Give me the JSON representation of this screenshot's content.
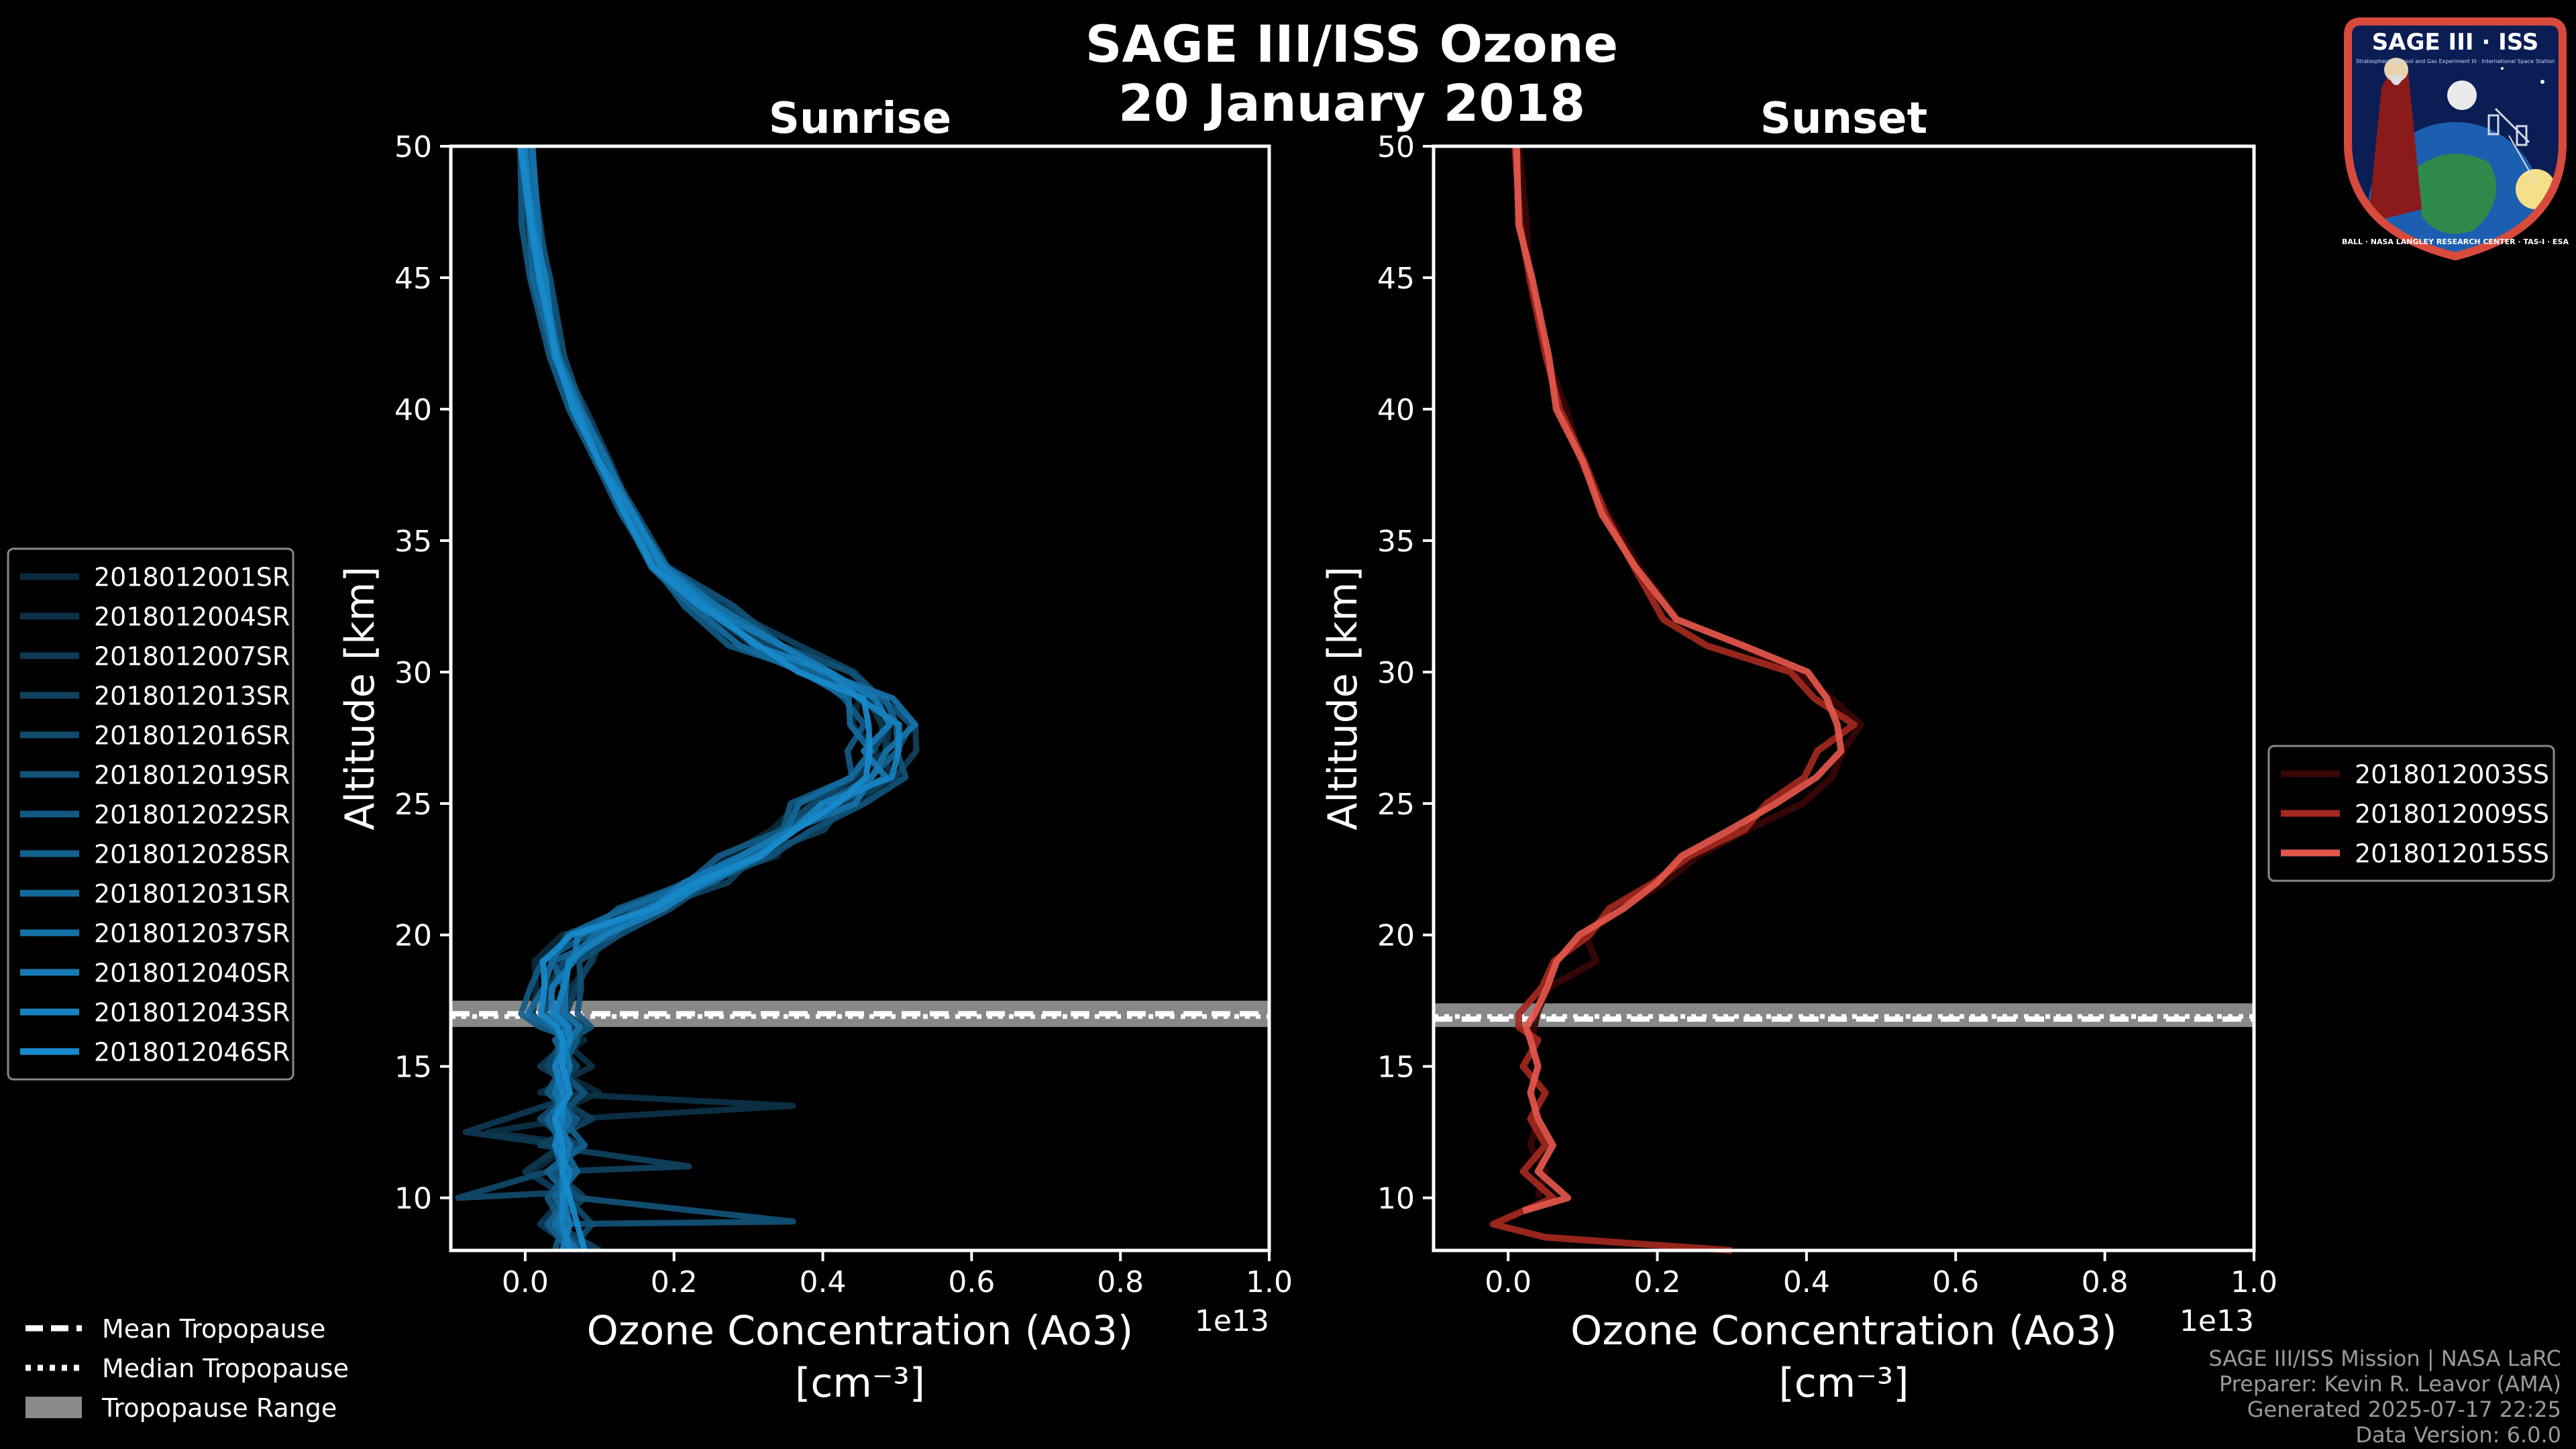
{
  "figure": {
    "title_line1": "SAGE III/ISS Ozone",
    "title_line2": "20 January 2018",
    "footer": [
      "SAGE III/ISS Mission | NASA LaRC",
      "Preparer: Kevin R. Leavor (AMA)",
      "Generated 2025-07-17 22:25",
      "Data Version: 6.0.0"
    ],
    "badge": {
      "title": "SAGE III · ISS",
      "subtitle": "Stratospheric Aerosol and Gas Experiment III · International Space Station",
      "ring_text": "BALL · NASA LANGLEY RESEARCH CENTER · TAS-I · ESA"
    }
  },
  "tropopause_legend": [
    {
      "label": "Mean Tropopause",
      "style": "dashed"
    },
    {
      "label": "Median Tropopause",
      "style": "dotted"
    },
    {
      "label": "Tropopause Range",
      "style": "band"
    }
  ],
  "colors": {
    "sunrise": [
      "#0b2a3d",
      "#0c3248",
      "#0e3a54",
      "#0f4260",
      "#104a6c",
      "#115278",
      "#125a84",
      "#136290",
      "#146a9c",
      "#1572a8",
      "#167ab4",
      "#1782c0",
      "#188acc"
    ],
    "sunrise_main": "#1f93d1",
    "sunset": [
      "#3a0606",
      "#a3281e",
      "#e2574c"
    ],
    "band": "#a0a0a0"
  },
  "chart_data": [
    {
      "id": "sunrise",
      "type": "line",
      "title": "Sunrise",
      "xlabel": "Ozone Concentration (Ao3)",
      "xlabel_units": "[cm⁻³]",
      "x_multiplier_label": "1e13",
      "ylabel": "Altitude [km]",
      "xlim": [
        -0.1,
        1.0
      ],
      "ylim": [
        8,
        50
      ],
      "xticks": [
        0.0,
        0.2,
        0.4,
        0.6,
        0.8,
        1.0
      ],
      "xtick_labels": [
        "0.0",
        "0.2",
        "0.4",
        "0.6",
        "0.8",
        "1.0"
      ],
      "yticks": [
        10,
        15,
        20,
        25,
        30,
        35,
        40,
        45,
        50
      ],
      "ytick_labels": [
        "10",
        "15",
        "20",
        "25",
        "30",
        "35",
        "40",
        "45",
        "50"
      ],
      "tropopause": {
        "mean": 17.0,
        "median": 16.9,
        "range": [
          16.5,
          17.5
        ]
      },
      "legend_position": "left",
      "series": [
        {
          "name": "2018012001SR",
          "offset": -0.02,
          "tail": [
            [
              0.08,
              16
            ],
            [
              0.03,
              15
            ],
            [
              0.1,
              14
            ],
            [
              0.02,
              13
            ],
            [
              0.06,
              12
            ],
            [
              0.01,
              11
            ],
            [
              0.05,
              10
            ],
            [
              0.02,
              9
            ],
            [
              0.08,
              8
            ]
          ]
        },
        {
          "name": "2018012004SR",
          "offset": 0.02,
          "tail": [
            [
              0.05,
              16
            ],
            [
              0.09,
              15
            ],
            [
              0.02,
              14
            ],
            [
              0.36,
              13.5
            ],
            [
              0.06,
              13
            ],
            [
              -0.05,
              12.5
            ],
            [
              0.08,
              12
            ],
            [
              0.03,
              11
            ],
            [
              0.07,
              10
            ],
            [
              0.03,
              9
            ],
            [
              0.09,
              8
            ]
          ]
        },
        {
          "name": "2018012007SR",
          "offset": -0.01,
          "tail": [
            [
              0.06,
              16
            ],
            [
              0.02,
              15
            ],
            [
              0.08,
              14
            ],
            [
              -0.08,
              12.5
            ],
            [
              0.05,
              12
            ],
            [
              0.0,
              11
            ],
            [
              0.06,
              10
            ],
            [
              0.02,
              9
            ],
            [
              0.07,
              8
            ]
          ]
        },
        {
          "name": "2018012013SR",
          "offset": 0.03,
          "tail": [
            [
              0.04,
              16
            ],
            [
              0.07,
              15
            ],
            [
              0.03,
              14
            ],
            [
              0.09,
              13
            ],
            [
              0.02,
              12
            ],
            [
              0.22,
              11.2
            ],
            [
              0.04,
              11
            ],
            [
              0.08,
              10
            ],
            [
              0.04,
              9
            ],
            [
              0.1,
              8
            ]
          ]
        },
        {
          "name": "2018012016SR",
          "offset": 0.0,
          "tail": [
            [
              0.05,
              16
            ],
            [
              0.03,
              15
            ],
            [
              0.06,
              14
            ],
            [
              0.02,
              13
            ],
            [
              0.07,
              12
            ],
            [
              0.03,
              11
            ],
            [
              -0.09,
              10
            ],
            [
              0.05,
              10.2
            ],
            [
              0.09,
              9
            ],
            [
              0.06,
              8
            ]
          ]
        },
        {
          "name": "2018012019SR",
          "offset": 0.04,
          "tail": [
            [
              0.06,
              16
            ],
            [
              0.04,
              15
            ],
            [
              0.08,
              14
            ],
            [
              0.04,
              13
            ],
            [
              0.06,
              12
            ],
            [
              0.04,
              11
            ],
            [
              0.07,
              10
            ],
            [
              0.36,
              9.1
            ],
            [
              0.04,
              9
            ],
            [
              0.08,
              8
            ]
          ]
        },
        {
          "name": "2018012022SR",
          "offset": -0.03,
          "tail": [
            [
              0.07,
              16
            ],
            [
              0.05,
              15
            ],
            [
              0.03,
              14
            ],
            [
              0.07,
              13
            ],
            [
              0.04,
              12
            ],
            [
              0.06,
              11
            ],
            [
              0.03,
              10
            ],
            [
              0.05,
              9
            ],
            [
              0.04,
              8
            ]
          ]
        },
        {
          "name": "2018012028SR",
          "offset": 0.01,
          "tail": [
            [
              0.04,
              16
            ],
            [
              0.06,
              15
            ],
            [
              0.04,
              14
            ],
            [
              0.05,
              13
            ],
            [
              0.08,
              12
            ],
            [
              0.03,
              11
            ],
            [
              0.06,
              10
            ],
            [
              0.03,
              9
            ],
            [
              0.06,
              8
            ]
          ]
        },
        {
          "name": "2018012031SR",
          "offset": -0.02,
          "tail": [
            [
              0.05,
              16
            ],
            [
              0.04,
              15
            ],
            [
              0.06,
              14
            ],
            [
              0.03,
              13
            ],
            [
              0.05,
              12
            ],
            [
              0.07,
              11
            ],
            [
              0.04,
              10
            ],
            [
              0.06,
              9
            ],
            [
              0.05,
              8
            ]
          ]
        },
        {
          "name": "2018012037SR",
          "offset": 0.02,
          "tail": [
            [
              0.06,
              16
            ],
            [
              0.05,
              15
            ],
            [
              0.04,
              14
            ],
            [
              0.06,
              13
            ],
            [
              0.04,
              12
            ],
            [
              0.05,
              11
            ],
            [
              0.06,
              10
            ],
            [
              0.04,
              9
            ],
            [
              0.07,
              8
            ]
          ]
        },
        {
          "name": "2018012040SR",
          "offset": 0.0,
          "tail": [
            [
              0.05,
              16
            ],
            [
              0.06,
              15
            ],
            [
              0.05,
              14
            ],
            [
              0.04,
              13
            ],
            [
              0.06,
              12
            ],
            [
              0.05,
              11
            ],
            [
              0.05,
              10
            ],
            [
              0.06,
              9
            ],
            [
              0.05,
              8
            ]
          ]
        },
        {
          "name": "2018012043SR",
          "offset": 0.01,
          "tail": [
            [
              0.06,
              16
            ],
            [
              0.04,
              15
            ],
            [
              0.05,
              14
            ],
            [
              0.05,
              13
            ],
            [
              0.04,
              12
            ],
            [
              0.06,
              11
            ],
            [
              0.05,
              10
            ],
            [
              0.05,
              9
            ],
            [
              0.06,
              8
            ]
          ]
        },
        {
          "name": "2018012046SR",
          "offset": -0.01,
          "tail": [
            [
              0.05,
              16
            ],
            [
              0.05,
              15
            ],
            [
              0.06,
              14
            ],
            [
              0.04,
              13
            ],
            [
              0.05,
              12
            ],
            [
              0.05,
              11
            ],
            [
              0.06,
              10
            ],
            [
              0.07,
              9
            ],
            [
              0.08,
              8
            ]
          ]
        }
      ],
      "base_profile": [
        [
          0.0,
          50
        ],
        [
          0.01,
          47
        ],
        [
          0.02,
          45
        ],
        [
          0.04,
          42
        ],
        [
          0.07,
          40
        ],
        [
          0.1,
          38
        ],
        [
          0.14,
          36
        ],
        [
          0.18,
          34
        ],
        [
          0.24,
          32.5
        ],
        [
          0.32,
          31
        ],
        [
          0.39,
          30
        ],
        [
          0.45,
          29
        ],
        [
          0.48,
          28
        ],
        [
          0.48,
          27
        ],
        [
          0.46,
          26
        ],
        [
          0.41,
          25
        ],
        [
          0.36,
          24
        ],
        [
          0.3,
          23
        ],
        [
          0.23,
          22
        ],
        [
          0.16,
          21
        ],
        [
          0.09,
          20
        ],
        [
          0.05,
          19
        ],
        [
          0.04,
          18
        ],
        [
          0.03,
          17
        ],
        [
          0.05,
          16.5
        ]
      ]
    },
    {
      "id": "sunset",
      "type": "line",
      "title": "Sunset",
      "xlabel": "Ozone Concentration (Ao3)",
      "xlabel_units": "[cm⁻³]",
      "x_multiplier_label": "1e13",
      "ylabel": "Altitude [km]",
      "xlim": [
        -0.1,
        1.0
      ],
      "ylim": [
        8,
        50
      ],
      "xticks": [
        0.0,
        0.2,
        0.4,
        0.6,
        0.8,
        1.0
      ],
      "xtick_labels": [
        "0.0",
        "0.2",
        "0.4",
        "0.6",
        "0.8",
        "1.0"
      ],
      "yticks": [
        10,
        15,
        20,
        25,
        30,
        35,
        40,
        45,
        50
      ],
      "ytick_labels": [
        "10",
        "15",
        "20",
        "25",
        "30",
        "35",
        "40",
        "45",
        "50"
      ],
      "tropopause": {
        "mean": 16.8,
        "median": 16.9,
        "range": [
          16.5,
          17.4
        ]
      },
      "legend_position": "right",
      "series": [
        {
          "name": "2018012003SS",
          "offset": 0.01,
          "tail": [
            [
              0.03,
              16
            ],
            [
              0.04,
              15
            ],
            [
              0.03,
              14
            ],
            [
              0.04,
              13
            ],
            [
              0.03,
              12
            ],
            [
              0.05,
              11
            ],
            [
              0.04,
              10
            ]
          ]
        },
        {
          "name": "2018012009SS",
          "offset": -0.01,
          "tail": [
            [
              0.04,
              16
            ],
            [
              0.02,
              15
            ],
            [
              0.05,
              14
            ],
            [
              0.03,
              13
            ],
            [
              0.05,
              12
            ],
            [
              0.02,
              11
            ],
            [
              0.06,
              10
            ],
            [
              -0.02,
              9
            ],
            [
              0.05,
              8.5
            ],
            [
              0.3,
              8
            ]
          ]
        },
        {
          "name": "2018012015SS",
          "offset": 0.0,
          "tail": [
            [
              0.03,
              16
            ],
            [
              0.04,
              15
            ],
            [
              0.03,
              14
            ],
            [
              0.04,
              13
            ],
            [
              0.06,
              12
            ],
            [
              0.04,
              11
            ],
            [
              0.08,
              10
            ],
            [
              0.02,
              9.5
            ]
          ]
        }
      ],
      "base_profile": [
        [
          0.01,
          50
        ],
        [
          0.02,
          47
        ],
        [
          0.03,
          45
        ],
        [
          0.05,
          42
        ],
        [
          0.07,
          40
        ],
        [
          0.1,
          38
        ],
        [
          0.13,
          36
        ],
        [
          0.17,
          34
        ],
        [
          0.22,
          32
        ],
        [
          0.3,
          31
        ],
        [
          0.38,
          30
        ],
        [
          0.43,
          29
        ],
        [
          0.45,
          28
        ],
        [
          0.44,
          27
        ],
        [
          0.42,
          26
        ],
        [
          0.38,
          25
        ],
        [
          0.32,
          24
        ],
        [
          0.25,
          23
        ],
        [
          0.2,
          22
        ],
        [
          0.15,
          21
        ],
        [
          0.11,
          20
        ],
        [
          0.09,
          19
        ],
        [
          0.05,
          18
        ],
        [
          0.03,
          17
        ],
        [
          0.03,
          16.5
        ]
      ]
    }
  ]
}
